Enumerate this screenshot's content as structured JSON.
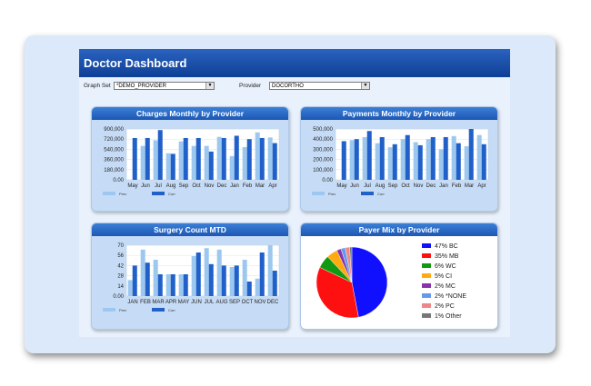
{
  "app": {
    "title": "Doctor Dashboard"
  },
  "filters": {
    "graph_set_label": "Graph Set",
    "graph_set_value": "*DEMO_PROVIDER",
    "provider_label": "Provider",
    "provider_value": "DOCORTHO"
  },
  "chart_data": [
    {
      "type": "bar",
      "title": "Charges Monthly by Provider",
      "categories": [
        "May",
        "Jun",
        "Jul",
        "Aug",
        "Sep",
        "Oct",
        "Nov",
        "Dec",
        "Jan",
        "Feb",
        "Mar",
        "Apr"
      ],
      "yticks": [
        "900,000",
        "720,000",
        "540,000",
        "360,000",
        "180,000",
        "0.00"
      ],
      "ylim": [
        0,
        900000
      ],
      "series": [
        {
          "name": "Prev",
          "color": "#9cc8f0",
          "values": [
            0,
            600000,
            700000,
            470000,
            680000,
            600000,
            600000,
            760000,
            420000,
            580000,
            840000,
            750000
          ]
        },
        {
          "name": "Curr",
          "color": "#2060c8",
          "values": [
            740000,
            740000,
            880000,
            460000,
            740000,
            740000,
            500000,
            740000,
            780000,
            720000,
            740000,
            650000
          ]
        }
      ],
      "legend": [
        "Prev",
        "Curr"
      ]
    },
    {
      "type": "bar",
      "title": "Payments Monthly by Provider",
      "categories": [
        "May",
        "Jun",
        "Jul",
        "Aug",
        "Sep",
        "Oct",
        "Nov",
        "Dec",
        "Jan",
        "Feb",
        "Mar",
        "Apr"
      ],
      "yticks": [
        "500,000",
        "400,000",
        "300,000",
        "200,000",
        "100,000",
        "0.00"
      ],
      "ylim": [
        0,
        500000
      ],
      "series": [
        {
          "name": "Prev",
          "color": "#9cc8f0",
          "values": [
            0,
            390000,
            420000,
            360000,
            320000,
            400000,
            370000,
            400000,
            300000,
            430000,
            330000,
            440000
          ]
        },
        {
          "name": "Curr",
          "color": "#2060c8",
          "values": [
            380000,
            400000,
            480000,
            420000,
            350000,
            440000,
            340000,
            420000,
            420000,
            360000,
            500000,
            350000
          ]
        }
      ],
      "legend": [
        "Prev",
        "Curr"
      ]
    },
    {
      "type": "bar",
      "title": "Surgery Count MTD",
      "categories": [
        "JAN",
        "FEB",
        "MAR",
        "APR",
        "MAY",
        "JUN",
        "JUL",
        "AUG",
        "SEP",
        "OCT",
        "NOV",
        "DEC"
      ],
      "yticks": [
        "70",
        "56",
        "42",
        "28",
        "14",
        "0.00"
      ],
      "ylim": [
        0,
        70
      ],
      "series": [
        {
          "name": "Prev",
          "color": "#9cc8f0",
          "values": [
            22,
            64,
            50,
            30,
            30,
            55,
            66,
            64,
            40,
            50,
            24,
            70
          ]
        },
        {
          "name": "Curr",
          "color": "#2060c8",
          "values": [
            42,
            46,
            30,
            30,
            30,
            60,
            44,
            42,
            42,
            20,
            60,
            35
          ]
        }
      ],
      "legend": [
        "Prev",
        "Curr"
      ]
    },
    {
      "type": "pie",
      "title": "Payer Mix by Provider",
      "labels": [
        "47% BC",
        "35% MB",
        "6% WC",
        "5% CI",
        "2% MC",
        "2% *NONE",
        "2% PC",
        "1% Other"
      ],
      "values": [
        47,
        35,
        6,
        5,
        2,
        2,
        2,
        1
      ],
      "colors": [
        "#1010ff",
        "#ff1010",
        "#119911",
        "#ffaa11",
        "#8833aa",
        "#6699ee",
        "#ee8888",
        "#777777"
      ]
    }
  ]
}
